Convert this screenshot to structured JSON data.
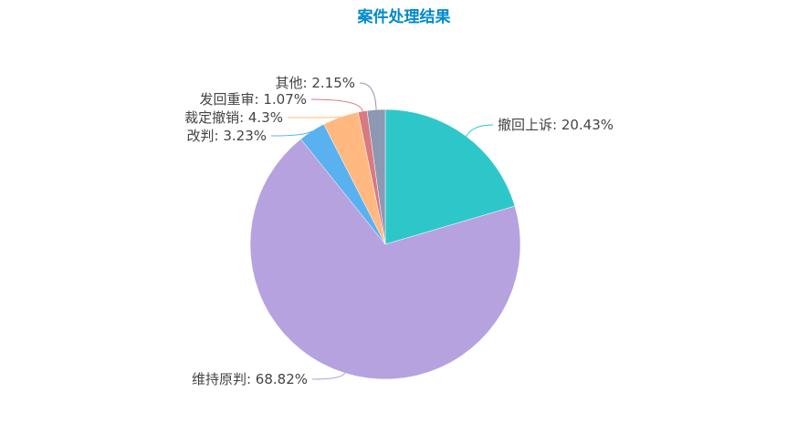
{
  "chart_data": {
    "type": "pie",
    "title": "案件处理结果",
    "slices": [
      {
        "name": "撤回上诉",
        "value": 20.43,
        "color": "#2ec7c9"
      },
      {
        "name": "维持原判",
        "value": 68.82,
        "color": "#b6a2de"
      },
      {
        "name": "改判",
        "value": 3.23,
        "color": "#5ab1ef"
      },
      {
        "name": "裁定撤销",
        "value": 4.3,
        "color": "#ffb980"
      },
      {
        "name": "发回重审",
        "value": 1.07,
        "color": "#d87a80"
      },
      {
        "name": "其他",
        "value": 2.15,
        "color": "#8d98b3"
      }
    ],
    "labels": [
      "撤回上诉: 20.43%",
      "维持原判: 68.82%",
      "改判: 3.23%",
      "裁定撤销: 4.3%",
      "发回重审: 1.07%",
      "其他: 2.15%"
    ],
    "start": "top",
    "direction": "clockwise",
    "legend": "none"
  }
}
